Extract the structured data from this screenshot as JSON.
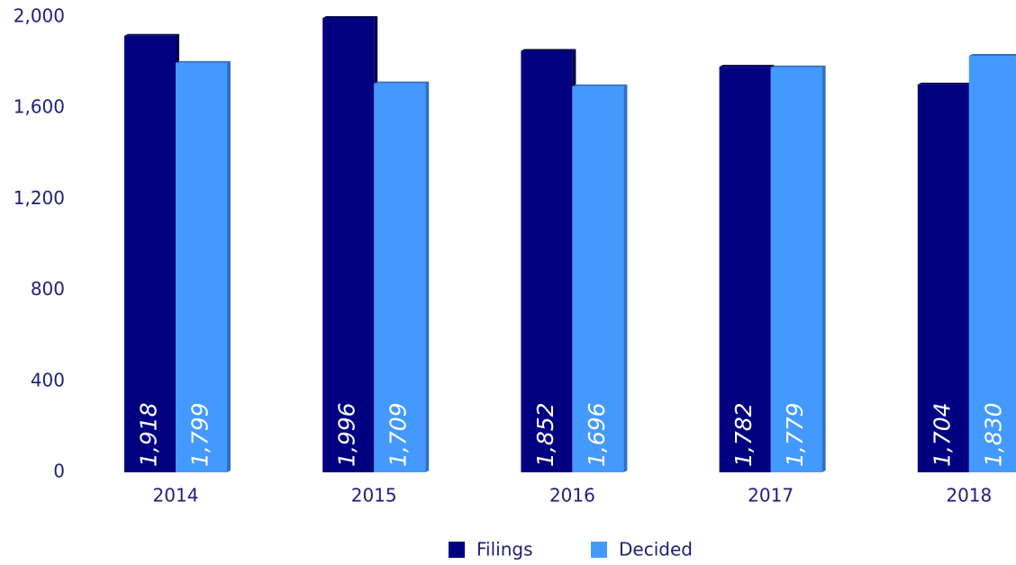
{
  "chart_data": {
    "type": "bar",
    "categories": [
      "2014",
      "2015",
      "2016",
      "2017",
      "2018"
    ],
    "series": [
      {
        "name": "Filings",
        "color": "#000080",
        "values": [
          1918,
          1996,
          1852,
          1782,
          1704
        ],
        "value_labels": [
          "1,918",
          "1,996",
          "1,852",
          "1,782",
          "1,704"
        ]
      },
      {
        "name": "Decided",
        "color": "#4499ff",
        "values": [
          1799,
          1709,
          1696,
          1779,
          1830
        ],
        "value_labels": [
          "1,799",
          "1,709",
          "1,696",
          "1,779",
          "1,830"
        ]
      }
    ],
    "ylim": [
      0,
      2000
    ],
    "yticks": [
      0,
      400,
      800,
      {
        "value": 1200,
        "label": "1,200"
      },
      {
        "value": 1600,
        "label": "1,600"
      },
      {
        "value": 2000,
        "label": "2,000"
      }
    ],
    "legend": "bottom"
  }
}
